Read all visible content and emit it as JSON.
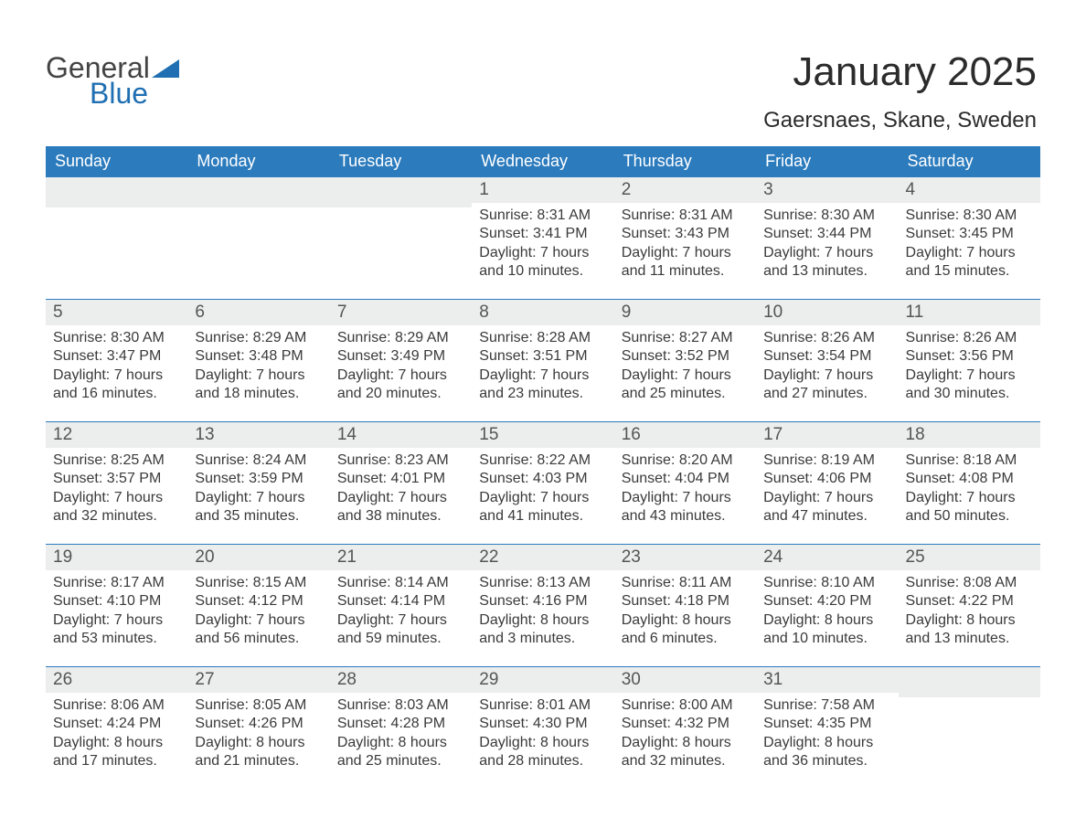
{
  "brand": {
    "word1": "General",
    "word2": "Blue",
    "text_color": "#444444",
    "accent_color": "#1f6fb2"
  },
  "header": {
    "title": "January 2025",
    "subtitle": "Gaersnaes, Skane, Sweden"
  },
  "calendar": {
    "type": "table",
    "columns": [
      "Sunday",
      "Monday",
      "Tuesday",
      "Wednesday",
      "Thursday",
      "Friday",
      "Saturday"
    ],
    "colors": {
      "header_bg": "#2b7bbd",
      "header_text": "#ffffff",
      "daynum_band_bg": "#eceded",
      "body_text": "#3a3a3a",
      "separator": "#2b7bbd",
      "page_bg": "#ffffff"
    },
    "fontsize": {
      "title": 44,
      "subtitle": 24,
      "dow": 18,
      "daynum": 19,
      "body": 16
    },
    "weeks": [
      [
        null,
        null,
        null,
        {
          "n": "1",
          "sunrise": "8:31 AM",
          "sunset": "3:41 PM",
          "dl_h": "7",
          "dl_m": "10"
        },
        {
          "n": "2",
          "sunrise": "8:31 AM",
          "sunset": "3:43 PM",
          "dl_h": "7",
          "dl_m": "11"
        },
        {
          "n": "3",
          "sunrise": "8:30 AM",
          "sunset": "3:44 PM",
          "dl_h": "7",
          "dl_m": "13"
        },
        {
          "n": "4",
          "sunrise": "8:30 AM",
          "sunset": "3:45 PM",
          "dl_h": "7",
          "dl_m": "15"
        }
      ],
      [
        {
          "n": "5",
          "sunrise": "8:30 AM",
          "sunset": "3:47 PM",
          "dl_h": "7",
          "dl_m": "16"
        },
        {
          "n": "6",
          "sunrise": "8:29 AM",
          "sunset": "3:48 PM",
          "dl_h": "7",
          "dl_m": "18"
        },
        {
          "n": "7",
          "sunrise": "8:29 AM",
          "sunset": "3:49 PM",
          "dl_h": "7",
          "dl_m": "20"
        },
        {
          "n": "8",
          "sunrise": "8:28 AM",
          "sunset": "3:51 PM",
          "dl_h": "7",
          "dl_m": "23"
        },
        {
          "n": "9",
          "sunrise": "8:27 AM",
          "sunset": "3:52 PM",
          "dl_h": "7",
          "dl_m": "25"
        },
        {
          "n": "10",
          "sunrise": "8:26 AM",
          "sunset": "3:54 PM",
          "dl_h": "7",
          "dl_m": "27"
        },
        {
          "n": "11",
          "sunrise": "8:26 AM",
          "sunset": "3:56 PM",
          "dl_h": "7",
          "dl_m": "30"
        }
      ],
      [
        {
          "n": "12",
          "sunrise": "8:25 AM",
          "sunset": "3:57 PM",
          "dl_h": "7",
          "dl_m": "32"
        },
        {
          "n": "13",
          "sunrise": "8:24 AM",
          "sunset": "3:59 PM",
          "dl_h": "7",
          "dl_m": "35"
        },
        {
          "n": "14",
          "sunrise": "8:23 AM",
          "sunset": "4:01 PM",
          "dl_h": "7",
          "dl_m": "38"
        },
        {
          "n": "15",
          "sunrise": "8:22 AM",
          "sunset": "4:03 PM",
          "dl_h": "7",
          "dl_m": "41"
        },
        {
          "n": "16",
          "sunrise": "8:20 AM",
          "sunset": "4:04 PM",
          "dl_h": "7",
          "dl_m": "43"
        },
        {
          "n": "17",
          "sunrise": "8:19 AM",
          "sunset": "4:06 PM",
          "dl_h": "7",
          "dl_m": "47"
        },
        {
          "n": "18",
          "sunrise": "8:18 AM",
          "sunset": "4:08 PM",
          "dl_h": "7",
          "dl_m": "50"
        }
      ],
      [
        {
          "n": "19",
          "sunrise": "8:17 AM",
          "sunset": "4:10 PM",
          "dl_h": "7",
          "dl_m": "53"
        },
        {
          "n": "20",
          "sunrise": "8:15 AM",
          "sunset": "4:12 PM",
          "dl_h": "7",
          "dl_m": "56"
        },
        {
          "n": "21",
          "sunrise": "8:14 AM",
          "sunset": "4:14 PM",
          "dl_h": "7",
          "dl_m": "59"
        },
        {
          "n": "22",
          "sunrise": "8:13 AM",
          "sunset": "4:16 PM",
          "dl_h": "8",
          "dl_m": "3"
        },
        {
          "n": "23",
          "sunrise": "8:11 AM",
          "sunset": "4:18 PM",
          "dl_h": "8",
          "dl_m": "6"
        },
        {
          "n": "24",
          "sunrise": "8:10 AM",
          "sunset": "4:20 PM",
          "dl_h": "8",
          "dl_m": "10"
        },
        {
          "n": "25",
          "sunrise": "8:08 AM",
          "sunset": "4:22 PM",
          "dl_h": "8",
          "dl_m": "13"
        }
      ],
      [
        {
          "n": "26",
          "sunrise": "8:06 AM",
          "sunset": "4:24 PM",
          "dl_h": "8",
          "dl_m": "17"
        },
        {
          "n": "27",
          "sunrise": "8:05 AM",
          "sunset": "4:26 PM",
          "dl_h": "8",
          "dl_m": "21"
        },
        {
          "n": "28",
          "sunrise": "8:03 AM",
          "sunset": "4:28 PM",
          "dl_h": "8",
          "dl_m": "25"
        },
        {
          "n": "29",
          "sunrise": "8:01 AM",
          "sunset": "4:30 PM",
          "dl_h": "8",
          "dl_m": "28"
        },
        {
          "n": "30",
          "sunrise": "8:00 AM",
          "sunset": "4:32 PM",
          "dl_h": "8",
          "dl_m": "32"
        },
        {
          "n": "31",
          "sunrise": "7:58 AM",
          "sunset": "4:35 PM",
          "dl_h": "8",
          "dl_m": "36"
        },
        null
      ]
    ],
    "labels": {
      "sunrise": "Sunrise: ",
      "sunset": "Sunset: ",
      "daylight1": "Daylight: ",
      "hours": " hours",
      "and": "and ",
      "minutes": " minutes."
    }
  }
}
